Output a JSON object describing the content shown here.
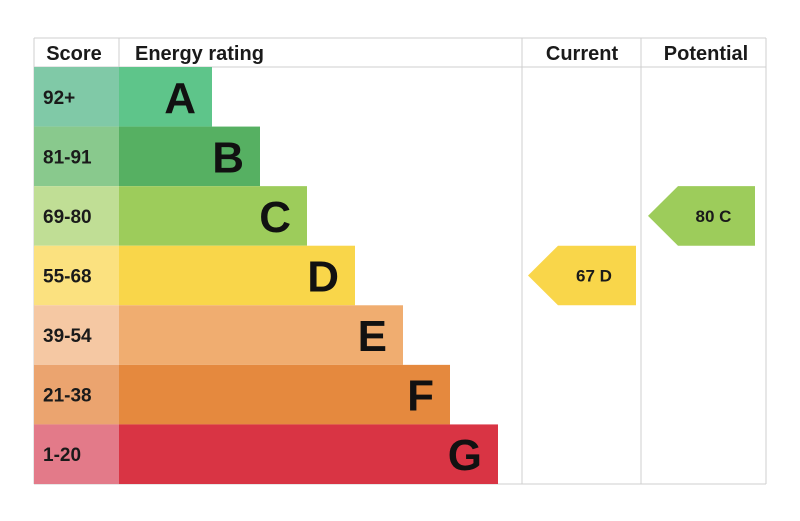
{
  "chart_data": {
    "type": "bar",
    "headers": {
      "score": "Score",
      "rating": "Energy rating",
      "current": "Current",
      "potential": "Potential"
    },
    "bands": [
      {
        "letter": "A",
        "score": "92+",
        "min": 92,
        "max": 100,
        "color": "#5ec58a",
        "score_bg": "#80c9a7"
      },
      {
        "letter": "B",
        "score": "81-91",
        "min": 81,
        "max": 91,
        "color": "#56b062",
        "score_bg": "#89c98d"
      },
      {
        "letter": "C",
        "score": "69-80",
        "min": 69,
        "max": 80,
        "color": "#9dcc5b",
        "score_bg": "#c0de95"
      },
      {
        "letter": "D",
        "score": "55-68",
        "min": 55,
        "max": 68,
        "color": "#f9d64a",
        "score_bg": "#fbe17f"
      },
      {
        "letter": "E",
        "score": "39-54",
        "min": 39,
        "max": 54,
        "color": "#f0ad70",
        "score_bg": "#f5c8a3"
      },
      {
        "letter": "F",
        "score": "21-38",
        "min": 21,
        "max": 38,
        "color": "#e5893e",
        "score_bg": "#eba46f"
      },
      {
        "letter": "G",
        "score": "1-20",
        "min": 1,
        "max": 20,
        "color": "#d93444",
        "score_bg": "#e37a89"
      }
    ],
    "current": {
      "value": 67,
      "band": "D",
      "label": "67 D",
      "color": "#f9d64a"
    },
    "potential": {
      "value": 80,
      "band": "C",
      "label": "80 C",
      "color": "#9dcc5b"
    }
  }
}
